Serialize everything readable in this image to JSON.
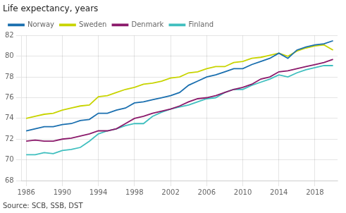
{
  "chart_data": {
    "type": "line",
    "title": "Life expectancy, years",
    "annotations": [
      "Source: SCB, SSB, DST"
    ],
    "x": [
      1986,
      1987,
      1988,
      1989,
      1990,
      1991,
      1992,
      1993,
      1994,
      1995,
      1996,
      1997,
      1998,
      1999,
      2000,
      2001,
      2002,
      2003,
      2004,
      2005,
      2006,
      2007,
      2008,
      2009,
      2010,
      2011,
      2012,
      2013,
      2014,
      2015,
      2016,
      2017,
      2018,
      2019,
      2020
    ],
    "series": [
      {
        "name": "Norway",
        "color": "#1a6faf",
        "values": [
          72.8,
          73.0,
          73.2,
          73.2,
          73.4,
          73.5,
          73.8,
          73.9,
          74.5,
          74.5,
          74.8,
          75.0,
          75.5,
          75.6,
          75.8,
          76.0,
          76.2,
          76.5,
          77.2,
          77.6,
          78.0,
          78.2,
          78.5,
          78.8,
          78.8,
          79.2,
          79.5,
          79.8,
          80.3,
          79.8,
          80.6,
          80.9,
          81.1,
          81.2,
          81.5
        ]
      },
      {
        "name": "Sweden",
        "color": "#c8d400",
        "values": [
          74.0,
          74.2,
          74.4,
          74.5,
          74.8,
          75.0,
          75.2,
          75.3,
          76.1,
          76.2,
          76.5,
          76.8,
          77.0,
          77.3,
          77.4,
          77.6,
          77.9,
          78.0,
          78.4,
          78.5,
          78.8,
          79.0,
          79.0,
          79.4,
          79.5,
          79.8,
          79.9,
          80.1,
          80.3,
          80.0,
          80.5,
          80.8,
          81.0,
          81.1,
          80.6
        ]
      },
      {
        "name": "Denmark",
        "color": "#8b1a6b",
        "values": [
          71.8,
          71.9,
          71.8,
          71.8,
          72.0,
          72.1,
          72.3,
          72.5,
          72.8,
          72.8,
          73.0,
          73.5,
          74.0,
          74.2,
          74.5,
          74.7,
          74.9,
          75.2,
          75.6,
          75.9,
          76.0,
          76.2,
          76.5,
          76.8,
          77.0,
          77.3,
          77.8,
          78.0,
          78.5,
          78.6,
          78.8,
          79.0,
          79.2,
          79.4,
          79.7
        ]
      },
      {
        "name": "Finland",
        "color": "#40bfbf",
        "values": [
          70.5,
          70.5,
          70.7,
          70.6,
          70.9,
          71.0,
          71.2,
          71.8,
          72.5,
          72.8,
          73.0,
          73.3,
          73.5,
          73.5,
          74.2,
          74.6,
          74.9,
          75.1,
          75.3,
          75.6,
          75.9,
          76.0,
          76.5,
          76.8,
          76.8,
          77.2,
          77.5,
          77.8,
          78.2,
          78.0,
          78.4,
          78.7,
          78.9,
          79.1,
          79.1
        ]
      }
    ],
    "xlim": [
      1985.5,
      2020.5
    ],
    "xticks": [
      1986,
      1990,
      1994,
      1998,
      2002,
      2006,
      2010,
      2014,
      2018
    ],
    "ylim": [
      68,
      82
    ],
    "yticks": [
      68,
      70,
      72,
      74,
      76,
      78,
      80,
      82
    ],
    "grid": true,
    "legend": "upper left"
  }
}
